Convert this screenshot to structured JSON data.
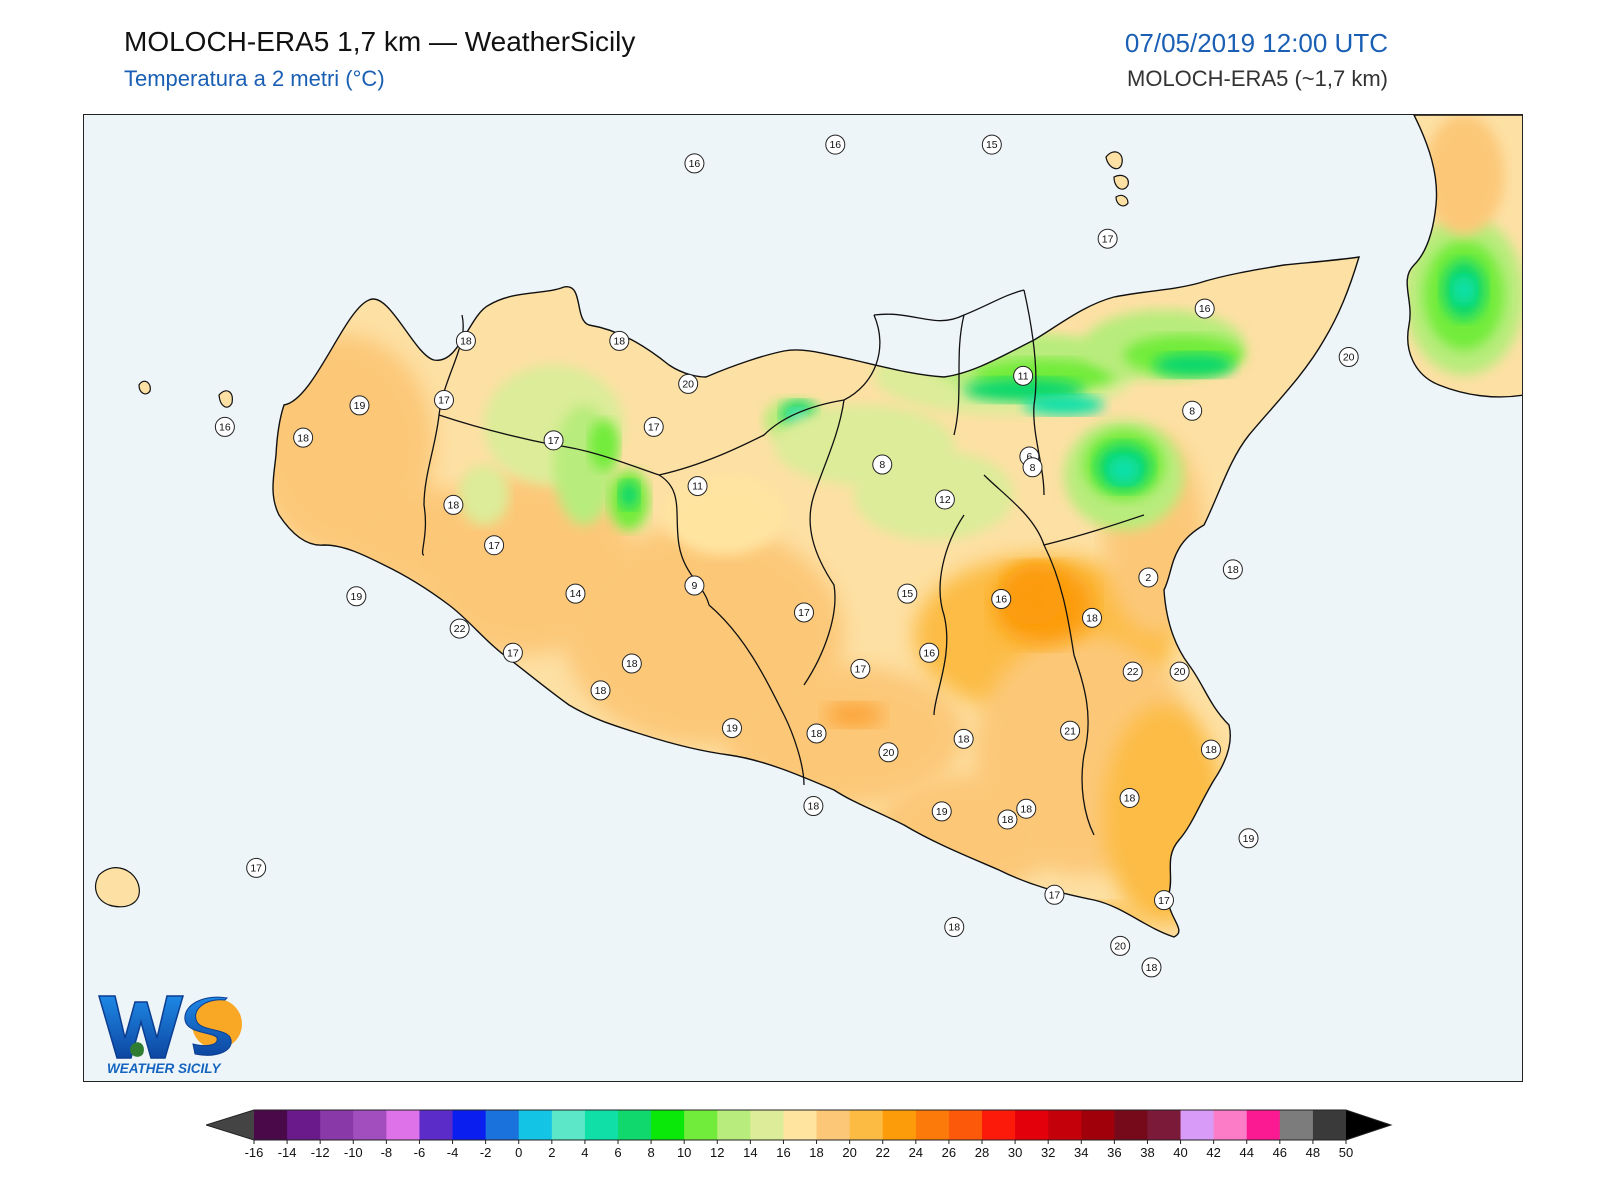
{
  "header": {
    "title": "MOLOCH-ERA5 1,7 km — WeatherSicily",
    "subtitle": "Temperatura a 2 metri (°C)",
    "datetime": "07/05/2019 12:00 UTC",
    "model": "MOLOCH-ERA5 (~1,7 km)"
  },
  "logo": {
    "text": "WEATHER SICILY",
    "mark": "WS"
  },
  "colorbar": {
    "ticks": [
      "-16",
      "-14",
      "-12",
      "-10",
      "-8",
      "-6",
      "-4",
      "-2",
      "0",
      "2",
      "4",
      "6",
      "8",
      "10",
      "12",
      "14",
      "16",
      "18",
      "20",
      "22",
      "24",
      "26",
      "28",
      "30",
      "32",
      "34",
      "36",
      "38",
      "40",
      "42",
      "44",
      "46",
      "48",
      "50"
    ],
    "colors": [
      "#4a0a4a",
      "#6a1a8a",
      "#8a3aa8",
      "#a24ebe",
      "#de72e8",
      "#5c2cc8",
      "#0a1ef0",
      "#1a72dc",
      "#14c4e4",
      "#5ce8c8",
      "#10e0a8",
      "#10d86c",
      "#0ae80a",
      "#72ec3a",
      "#b8ec7c",
      "#dcec98",
      "#ffe4a0",
      "#fcc878",
      "#fcbc44",
      "#fc9c0a",
      "#fc7a0a",
      "#fc5a0a",
      "#fc1a0a",
      "#e4000a",
      "#c4000a",
      "#a0000a",
      "#760a1a",
      "#7c1a3a",
      "#d89cf8",
      "#fc7cc8",
      "#fc1a92",
      "#7c7c7c",
      "#3a3a3a"
    ],
    "under_color": "#444444",
    "over_color": "#000000"
  },
  "stations": [
    {
      "v": "16",
      "lon": 13.55,
      "lat": 38.72
    },
    {
      "v": "16",
      "lon": 14.0,
      "lat": 38.79
    },
    {
      "v": "15",
      "lon": 14.5,
      "lat": 38.79
    },
    {
      "v": "17",
      "lon": 14.87,
      "lat": 38.44
    },
    {
      "v": "16",
      "lon": 15.18,
      "lat": 38.18
    },
    {
      "v": "20",
      "lon": 15.64,
      "lat": 38.0
    },
    {
      "v": "18",
      "lon": 12.82,
      "lat": 38.06
    },
    {
      "v": "18",
      "lon": 13.31,
      "lat": 38.06
    },
    {
      "v": "20",
      "lon": 13.53,
      "lat": 37.9
    },
    {
      "v": "17",
      "lon": 12.75,
      "lat": 37.84
    },
    {
      "v": "19",
      "lon": 12.48,
      "lat": 37.82
    },
    {
      "v": "16",
      "lon": 12.05,
      "lat": 37.74
    },
    {
      "v": "18",
      "lon": 12.3,
      "lat": 37.7
    },
    {
      "v": "17",
      "lon": 13.42,
      "lat": 37.74
    },
    {
      "v": "11",
      "lon": 14.6,
      "lat": 37.93
    },
    {
      "v": "8",
      "lon": 15.14,
      "lat": 37.8
    },
    {
      "v": "17",
      "lon": 13.1,
      "lat": 37.69
    },
    {
      "v": "11",
      "lon": 13.56,
      "lat": 37.52
    },
    {
      "v": "8",
      "lon": 14.15,
      "lat": 37.6
    },
    {
      "v": "6",
      "lon": 14.62,
      "lat": 37.63
    },
    {
      "v": "8",
      "lon": 14.63,
      "lat": 37.59
    },
    {
      "v": "18",
      "lon": 12.78,
      "lat": 37.45
    },
    {
      "v": "17",
      "lon": 12.91,
      "lat": 37.3
    },
    {
      "v": "12",
      "lon": 14.35,
      "lat": 37.47
    },
    {
      "v": "2",
      "lon": 15.0,
      "lat": 37.18
    },
    {
      "v": "18",
      "lon": 15.27,
      "lat": 37.21
    },
    {
      "v": "19",
      "lon": 12.47,
      "lat": 37.11
    },
    {
      "v": "14",
      "lon": 13.17,
      "lat": 37.12
    },
    {
      "v": "9",
      "lon": 13.55,
      "lat": 37.15
    },
    {
      "v": "15",
      "lon": 14.23,
      "lat": 37.12
    },
    {
      "v": "17",
      "lon": 13.9,
      "lat": 37.05
    },
    {
      "v": "16",
      "lon": 14.53,
      "lat": 37.1
    },
    {
      "v": "18",
      "lon": 14.82,
      "lat": 37.03
    },
    {
      "v": "22",
      "lon": 12.8,
      "lat": 36.99
    },
    {
      "v": "16",
      "lon": 14.3,
      "lat": 36.9
    },
    {
      "v": "17",
      "lon": 12.97,
      "lat": 36.9
    },
    {
      "v": "18",
      "lon": 13.35,
      "lat": 36.86
    },
    {
      "v": "17",
      "lon": 14.08,
      "lat": 36.84
    },
    {
      "v": "22",
      "lon": 14.95,
      "lat": 36.83
    },
    {
      "v": "20",
      "lon": 15.1,
      "lat": 36.83
    },
    {
      "v": "18",
      "lon": 13.25,
      "lat": 36.76
    },
    {
      "v": "21",
      "lon": 14.75,
      "lat": 36.61
    },
    {
      "v": "19",
      "lon": 13.67,
      "lat": 36.62
    },
    {
      "v": "18",
      "lon": 13.94,
      "lat": 36.6
    },
    {
      "v": "18",
      "lon": 14.41,
      "lat": 36.58
    },
    {
      "v": "18",
      "lon": 15.2,
      "lat": 36.54
    },
    {
      "v": "20",
      "lon": 14.17,
      "lat": 36.53
    },
    {
      "v": "18",
      "lon": 14.94,
      "lat": 36.36
    },
    {
      "v": "18",
      "lon": 14.61,
      "lat": 36.32
    },
    {
      "v": "18",
      "lon": 13.93,
      "lat": 36.33
    },
    {
      "v": "19",
      "lon": 14.34,
      "lat": 36.31
    },
    {
      "v": "18",
      "lon": 14.55,
      "lat": 36.28
    },
    {
      "v": "19",
      "lon": 15.32,
      "lat": 36.21
    },
    {
      "v": "17",
      "lon": 12.15,
      "lat": 36.1
    },
    {
      "v": "17",
      "lon": 14.7,
      "lat": 36.0
    },
    {
      "v": "17",
      "lon": 15.05,
      "lat": 35.98
    },
    {
      "v": "18",
      "lon": 14.38,
      "lat": 35.88
    },
    {
      "v": "20",
      "lon": 14.91,
      "lat": 35.81
    },
    {
      "v": "18",
      "lon": 15.01,
      "lat": 35.73
    }
  ]
}
